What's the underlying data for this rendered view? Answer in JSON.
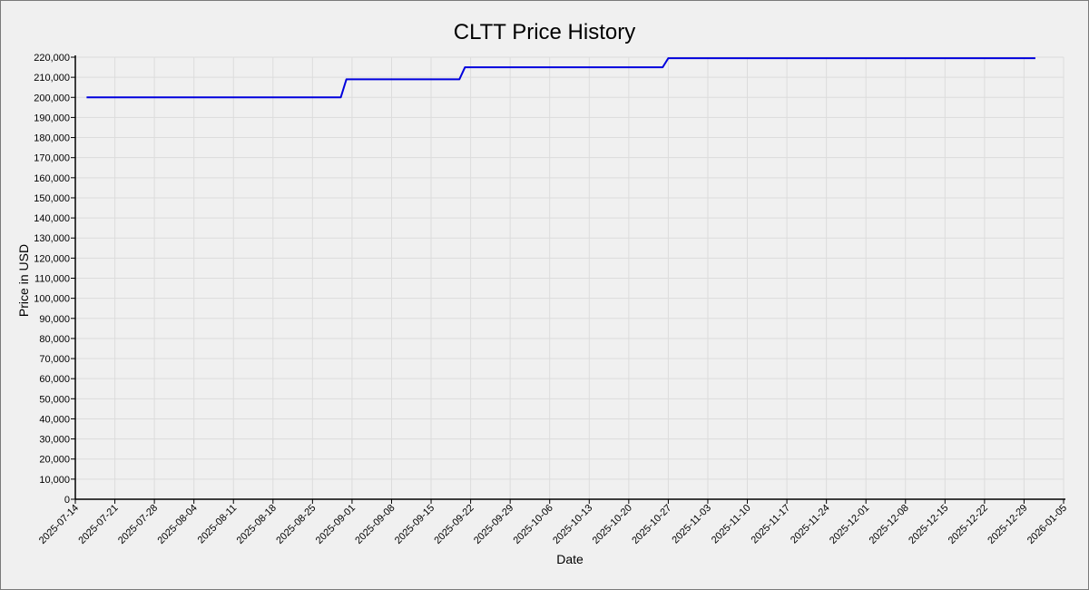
{
  "chart_data": {
    "type": "line",
    "title": "CLTT Price History",
    "xlabel": "Date",
    "ylabel": "Price in USD",
    "x_ticks": [
      "2025-07-14",
      "2025-07-21",
      "2025-07-28",
      "2025-08-04",
      "2025-08-11",
      "2025-08-18",
      "2025-08-25",
      "2025-09-01",
      "2025-09-08",
      "2025-09-15",
      "2025-09-22",
      "2025-09-29",
      "2025-10-06",
      "2025-10-13",
      "2025-10-20",
      "2025-10-27",
      "2025-11-03",
      "2025-11-10",
      "2025-11-17",
      "2025-11-24",
      "2025-12-01",
      "2025-12-08",
      "2025-12-15",
      "2025-12-22",
      "2025-12-29",
      "2026-01-05"
    ],
    "xlim": [
      "2025-07-14",
      "2026-01-05"
    ],
    "ylim": [
      0,
      220000
    ],
    "y_tick_step": 10000,
    "grid": true,
    "legend": "none",
    "series": [
      {
        "color": "#0000dd",
        "x": [
          "2025-07-16",
          "2025-08-30",
          "2025-08-31",
          "2025-09-20",
          "2025-09-21",
          "2025-10-26",
          "2025-10-27",
          "2025-12-31"
        ],
        "y": [
          200000,
          200000,
          209000,
          209000,
          215000,
          215000,
          219500,
          219500
        ]
      }
    ]
  }
}
